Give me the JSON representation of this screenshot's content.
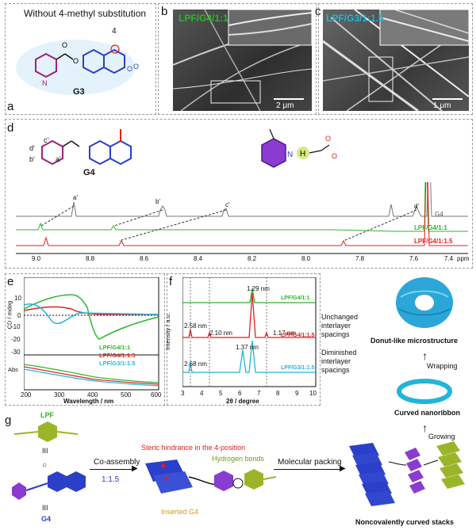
{
  "panels": {
    "a": {
      "letter": "a",
      "caption": "Without 4-methyl substitution",
      "position_label": "4",
      "compound": "G3"
    },
    "b": {
      "letter": "b",
      "sample": "LPF/G4/1:1",
      "scale": "2 μm"
    },
    "c": {
      "letter": "c",
      "sample": "LPF/G3/1:1.5",
      "scale": "1 μm"
    },
    "d": {
      "letter": "d",
      "compound": "G4",
      "proton_labels": {
        "a": "a'",
        "b": "b'",
        "c": "c'",
        "d": "d'",
        "ap": "a'",
        "bp": "b'",
        "cp": "c'",
        "dp": "d'"
      },
      "hbond_label": "H",
      "traces": [
        {
          "name": "G4",
          "color": "#777777"
        },
        {
          "name": "LPF/G4/1:1",
          "color": "#2db52d"
        },
        {
          "name": "LPF/G4/1:1.5",
          "color": "#e02020"
        }
      ],
      "x_ticks": [
        "9.0",
        "8.8",
        "8.6",
        "8.4",
        "8.2",
        "8.0",
        "7.8",
        "7.6",
        "7.4"
      ],
      "x_unit": "ppm"
    },
    "e": {
      "letter": "e",
      "cd_label": "CD / mdeg",
      "abs_label": "Abs",
      "xlabel": "Wavelength / nm",
      "cd_ticks": [
        "10",
        "0",
        "-10",
        "-20",
        "-30"
      ],
      "x_ticks": [
        "200",
        "300",
        "400",
        "500",
        "600"
      ],
      "legend": [
        "LPF/G4/1:1",
        "LPF/G4/1:1.5",
        "LPF/G3/1:1.5"
      ],
      "colors": [
        "#2db52d",
        "#e02020",
        "#22b5d8"
      ]
    },
    "f": {
      "letter": "f",
      "ylabel": "Intensity / a.u.",
      "xlabel": "2θ / degree",
      "x_ticks": [
        "3",
        "4",
        "5",
        "6",
        "7",
        "8",
        "9",
        "10"
      ],
      "traces": [
        "LPF/G4/1:1",
        "LPF/G4/1:1.5",
        "LPF/G3/1:1.5"
      ],
      "annotations": [
        "2.58 nm",
        "2.10 nm",
        "1.29 nm",
        "1.17 nm",
        "2.68 nm",
        "1.37 nm"
      ],
      "notes": [
        "Unchanged interlayer spacings",
        "Diminished interlayer spacings"
      ]
    },
    "right": {
      "donut": "Donut-like microstructure",
      "wrapping": "Wrapping",
      "ribbon": "Curved nanoribbon",
      "growing": "Growing"
    },
    "g": {
      "letter": "g",
      "lpf": "LPF",
      "g4": "G4",
      "bond": "III",
      "ratio": "1:1.5",
      "coassembly": "Co-assembly",
      "steric": "Steric hindrance in the 4-position",
      "hbonds": "Hydrogen bonds",
      "inserted": "Inserted G4",
      "packing": "Molecular packing",
      "stacks": "Noncovalently curved stacks"
    }
  }
}
